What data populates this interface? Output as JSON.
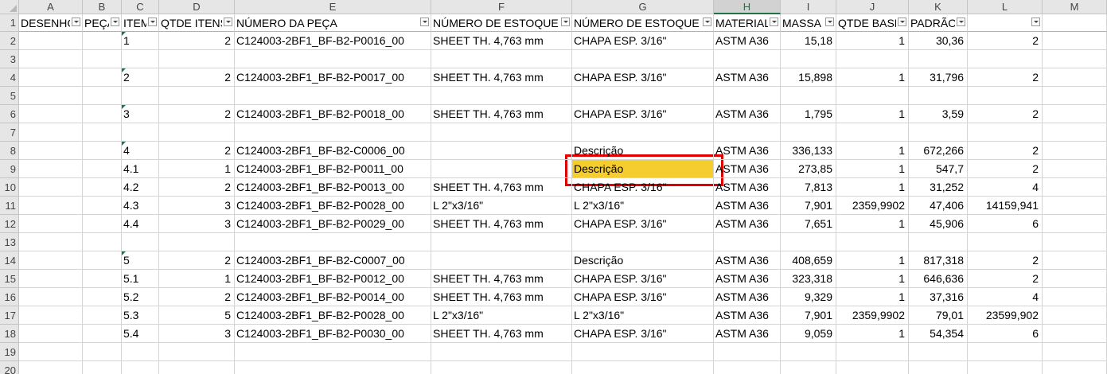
{
  "columns": [
    "A",
    "B",
    "C",
    "D",
    "E",
    "F",
    "G",
    "H",
    "I",
    "J",
    "K",
    "L",
    "M"
  ],
  "selected_column": "H",
  "header_row": [
    "DESENHO",
    "PEÇA",
    "ITEM",
    "QTDE ITENS",
    "NÚMERO DA PEÇA",
    "NÚMERO DE ESTOQUE",
    "NÚMERO DE ESTOQUE",
    "MATERIAL",
    "MASSA",
    "QTDE BASE",
    "PADRÃO",
    "",
    ""
  ],
  "rows": [
    {
      "n": "2",
      "cells": [
        "",
        "",
        "1",
        "2",
        "C124003-2BF1_BF-B2-P0016_00",
        "SHEET TH. 4,763 mm",
        "CHAPA ESP. 3/16\"",
        "ASTM A36",
        "15,18",
        "1",
        "30,36",
        "2",
        ""
      ]
    },
    {
      "n": "3",
      "cells": [
        "",
        "",
        "",
        "",
        "",
        "",
        "",
        "",
        "",
        "",
        "",
        "",
        ""
      ]
    },
    {
      "n": "4",
      "cells": [
        "",
        "",
        "2",
        "2",
        "C124003-2BF1_BF-B2-P0017_00",
        "SHEET TH. 4,763 mm",
        "CHAPA ESP. 3/16\"",
        "ASTM A36",
        "15,898",
        "1",
        "31,796",
        "2",
        ""
      ]
    },
    {
      "n": "5",
      "cells": [
        "",
        "",
        "",
        "",
        "",
        "",
        "",
        "",
        "",
        "",
        "",
        "",
        ""
      ]
    },
    {
      "n": "6",
      "cells": [
        "",
        "",
        "3",
        "2",
        "C124003-2BF1_BF-B2-P0018_00",
        "SHEET TH. 4,763 mm",
        "CHAPA ESP. 3/16\"",
        "ASTM A36",
        "1,795",
        "1",
        "3,59",
        "2",
        ""
      ]
    },
    {
      "n": "7",
      "cells": [
        "",
        "",
        "",
        "",
        "",
        "",
        "",
        "",
        "",
        "",
        "",
        "",
        ""
      ]
    },
    {
      "n": "8",
      "cells": [
        "",
        "",
        "4",
        "2",
        "C124003-2BF1_BF-B2-C0006_00",
        "",
        "Descrição",
        "ASTM A36",
        "336,133",
        "1",
        "672,266",
        "2",
        ""
      ]
    },
    {
      "n": "9",
      "cells": [
        "",
        "",
        "4.1",
        "1",
        "C124003-2BF1_BF-B2-P0011_00",
        "",
        "Descrição",
        "ASTM A36",
        "273,85",
        "1",
        "547,7",
        "2",
        ""
      ]
    },
    {
      "n": "10",
      "cells": [
        "",
        "",
        "4.2",
        "2",
        "C124003-2BF1_BF-B2-P0013_00",
        "SHEET TH. 4,763 mm",
        "CHAPA ESP. 3/16\"",
        "ASTM A36",
        "7,813",
        "1",
        "31,252",
        "4",
        ""
      ]
    },
    {
      "n": "11",
      "cells": [
        "",
        "",
        "4.3",
        "3",
        "C124003-2BF1_BF-B2-P0028_00",
        "L 2\"x3/16\"",
        "L 2\"x3/16\"",
        "ASTM A36",
        "7,901",
        "2359,9902",
        "47,406",
        "14159,941",
        ""
      ]
    },
    {
      "n": "12",
      "cells": [
        "",
        "",
        "4.4",
        "3",
        "C124003-2BF1_BF-B2-P0029_00",
        "SHEET TH. 4,763 mm",
        "CHAPA ESP. 3/16\"",
        "ASTM A36",
        "7,651",
        "1",
        "45,906",
        "6",
        ""
      ]
    },
    {
      "n": "13",
      "cells": [
        "",
        "",
        "",
        "",
        "",
        "",
        "",
        "",
        "",
        "",
        "",
        "",
        ""
      ]
    },
    {
      "n": "14",
      "cells": [
        "",
        "",
        "5",
        "2",
        "C124003-2BF1_BF-B2-C0007_00",
        "",
        "Descrição",
        "ASTM A36",
        "408,659",
        "1",
        "817,318",
        "2",
        ""
      ]
    },
    {
      "n": "15",
      "cells": [
        "",
        "",
        "5.1",
        "1",
        "C124003-2BF1_BF-B2-P0012_00",
        "SHEET TH. 4,763 mm",
        "CHAPA ESP. 3/16\"",
        "ASTM A36",
        "323,318",
        "1",
        "646,636",
        "2",
        ""
      ]
    },
    {
      "n": "16",
      "cells": [
        "",
        "",
        "5.2",
        "2",
        "C124003-2BF1_BF-B2-P0014_00",
        "SHEET TH. 4,763 mm",
        "CHAPA ESP. 3/16\"",
        "ASTM A36",
        "9,329",
        "1",
        "37,316",
        "4",
        ""
      ]
    },
    {
      "n": "17",
      "cells": [
        "",
        "",
        "5.3",
        "5",
        "C124003-2BF1_BF-B2-P0028_00",
        "L 2\"x3/16\"",
        "L 2\"x3/16\"",
        "ASTM A36",
        "7,901",
        "2359,9902",
        "79,01",
        "23599,902",
        ""
      ]
    },
    {
      "n": "18",
      "cells": [
        "",
        "",
        "5.4",
        "3",
        "C124003-2BF1_BF-B2-P0030_00",
        "SHEET TH. 4,763 mm",
        "CHAPA ESP. 3/16\"",
        "ASTM A36",
        "9,059",
        "1",
        "54,354",
        "6",
        ""
      ]
    },
    {
      "n": "19",
      "cells": [
        "",
        "",
        "",
        "",
        "",
        "",
        "",
        "",
        "",
        "",
        "",
        "",
        ""
      ]
    },
    {
      "n": "20",
      "cells": [
        "",
        "",
        "",
        "",
        "",
        "",
        "",
        "",
        "",
        "",
        "",
        "",
        ""
      ]
    }
  ],
  "highlighted_cell": {
    "row": "9",
    "col": "G",
    "color": "#f6cd2f"
  },
  "selection_outline_color": "#e00000",
  "accent_color": "#217346"
}
